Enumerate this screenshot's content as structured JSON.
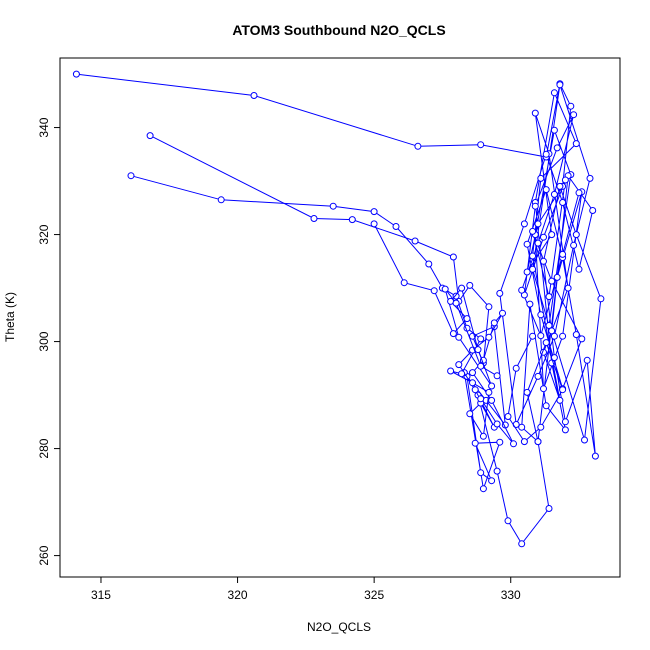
{
  "chart_data": {
    "type": "line",
    "title": "ATOM3 Southbound N2O_QCLS",
    "xlabel": "N2O_QCLS",
    "ylabel": "Theta (K)",
    "xlim": [
      313.5,
      334.0
    ],
    "ylim": [
      256.0,
      353.0
    ],
    "xticks": [
      315,
      320,
      325,
      330
    ],
    "yticks": [
      260,
      280,
      300,
      320,
      340
    ],
    "grid": false,
    "legend": "none",
    "series_color": "#0000ff",
    "marker": "open-circle",
    "series": [
      {
        "x": [
          314.1,
          320.6,
          326.6,
          328.9,
          331.3,
          331.8,
          332.2,
          331.9,
          331.0,
          330.6,
          331.5,
          330.9,
          331.4,
          332.1,
          331.2,
          331.8,
          330.8,
          331.1,
          332.4,
          331.6,
          330.9,
          331.5,
          332.0,
          331.3,
          330.7,
          330.4,
          331.0,
          331.7,
          332.6,
          331.9,
          331.2,
          330.9,
          331.6,
          332.2,
          331.4,
          330.8,
          331.8,
          332.9,
          332.3,
          331.6,
          331.0,
          330.2,
          329.6,
          330.5,
          331.3,
          331.9,
          332.5,
          333.0,
          332.1,
          331.5,
          332.7,
          333.3,
          332.4,
          331.8,
          331.2,
          331.6,
          332.0,
          332.8,
          333.1,
          332.4,
          331.9,
          331.3,
          330.6,
          331.1,
          331.9,
          332.6,
          331.5,
          330.8,
          331.4,
          332.0,
          331.2,
          330.5,
          330.9,
          331.7,
          332.3,
          331.6,
          331.0,
          330.4,
          331.1,
          331.9,
          332.5
        ],
        "y": [
          350,
          346,
          336.5,
          336.8,
          334.5,
          348.2,
          344,
          329,
          322,
          313,
          320,
          342.7,
          335.1,
          310,
          298,
          289,
          316,
          330.5,
          337,
          346.5,
          326,
          296,
          283.5,
          288,
          307,
          284,
          281.3,
          312,
          328,
          301,
          291.2,
          320,
          339.5,
          331.2,
          303,
          313.5,
          348,
          330.5,
          318,
          301,
          293.5,
          284.5,
          309,
          322,
          335,
          326,
          313.5,
          324.5,
          331,
          302,
          281.6,
          308,
          320,
          329,
          315,
          297,
          285,
          296.5,
          278.6,
          301.3,
          315.7,
          328.4,
          318.2,
          305,
          291.2,
          300.5,
          311.3,
          320.6,
          308.4,
          330.2,
          319.5,
          308.7,
          325.3,
          336.2,
          342.4,
          327.5,
          318.4,
          309.6,
          301.1,
          316.3,
          327.8
        ]
      },
      {
        "x": [
          316.8,
          322.8,
          324.2,
          326.5,
          327.9,
          328.1,
          328.5,
          329.2,
          329.0,
          328.6,
          329.4,
          329.8,
          329.1,
          328.4,
          328.9,
          329.3,
          328.7,
          329.6,
          329.0,
          328.3,
          328.8,
          329.5,
          329.9,
          330.4,
          331.4,
          331.0,
          330.6,
          331.3,
          331.9,
          331.1,
          330.5,
          329.9,
          330.2,
          330.8
        ],
        "y": [
          338.5,
          323,
          322.8,
          318.8,
          315.8,
          307.5,
          310.5,
          306.5,
          296,
          301,
          302.8,
          284.4,
          289,
          293.5,
          275.5,
          274,
          281,
          281.2,
          272.5,
          294.2,
          290,
          275.8,
          266.5,
          262.2,
          268.8,
          281.3,
          290.5,
          299.8,
          291,
          284,
          281.3,
          286,
          295,
          301
        ]
      },
      {
        "x": [
          316.1,
          319.4,
          323.5,
          325.0,
          325.8,
          327.0,
          327.5,
          328.0,
          328.4,
          328.9,
          328.2,
          327.8,
          328.6,
          329.2,
          329.0,
          328.5,
          328.9,
          329.4,
          328.7,
          328.1,
          328.6,
          329.2,
          329.7,
          329.4,
          329.0,
          328.6,
          329.3,
          330.1,
          329.5,
          328.9
        ],
        "y": [
          331,
          326.5,
          325.3,
          324.3,
          321.5,
          314.5,
          310,
          308.5,
          302.5,
          300.5,
          294,
          294.5,
          292.3,
          290.5,
          282.3,
          286.5,
          288.5,
          284,
          291,
          295.7,
          298.4,
          300.8,
          305.3,
          303.5,
          296.5,
          294.2,
          289,
          280.9,
          284.6,
          289.3
        ]
      },
      {
        "x": [
          325.0,
          326.1,
          327.2,
          327.9,
          328.4,
          327.8,
          328.2,
          328.8,
          329.3,
          328.1,
          327.6,
          328.0,
          328.9,
          329.5
        ],
        "y": [
          322,
          311,
          309.5,
          301.5,
          304.3,
          307.5,
          310,
          298.5,
          291.7,
          300.8,
          309.8,
          307.2,
          295.4,
          293.6
        ]
      }
    ]
  }
}
